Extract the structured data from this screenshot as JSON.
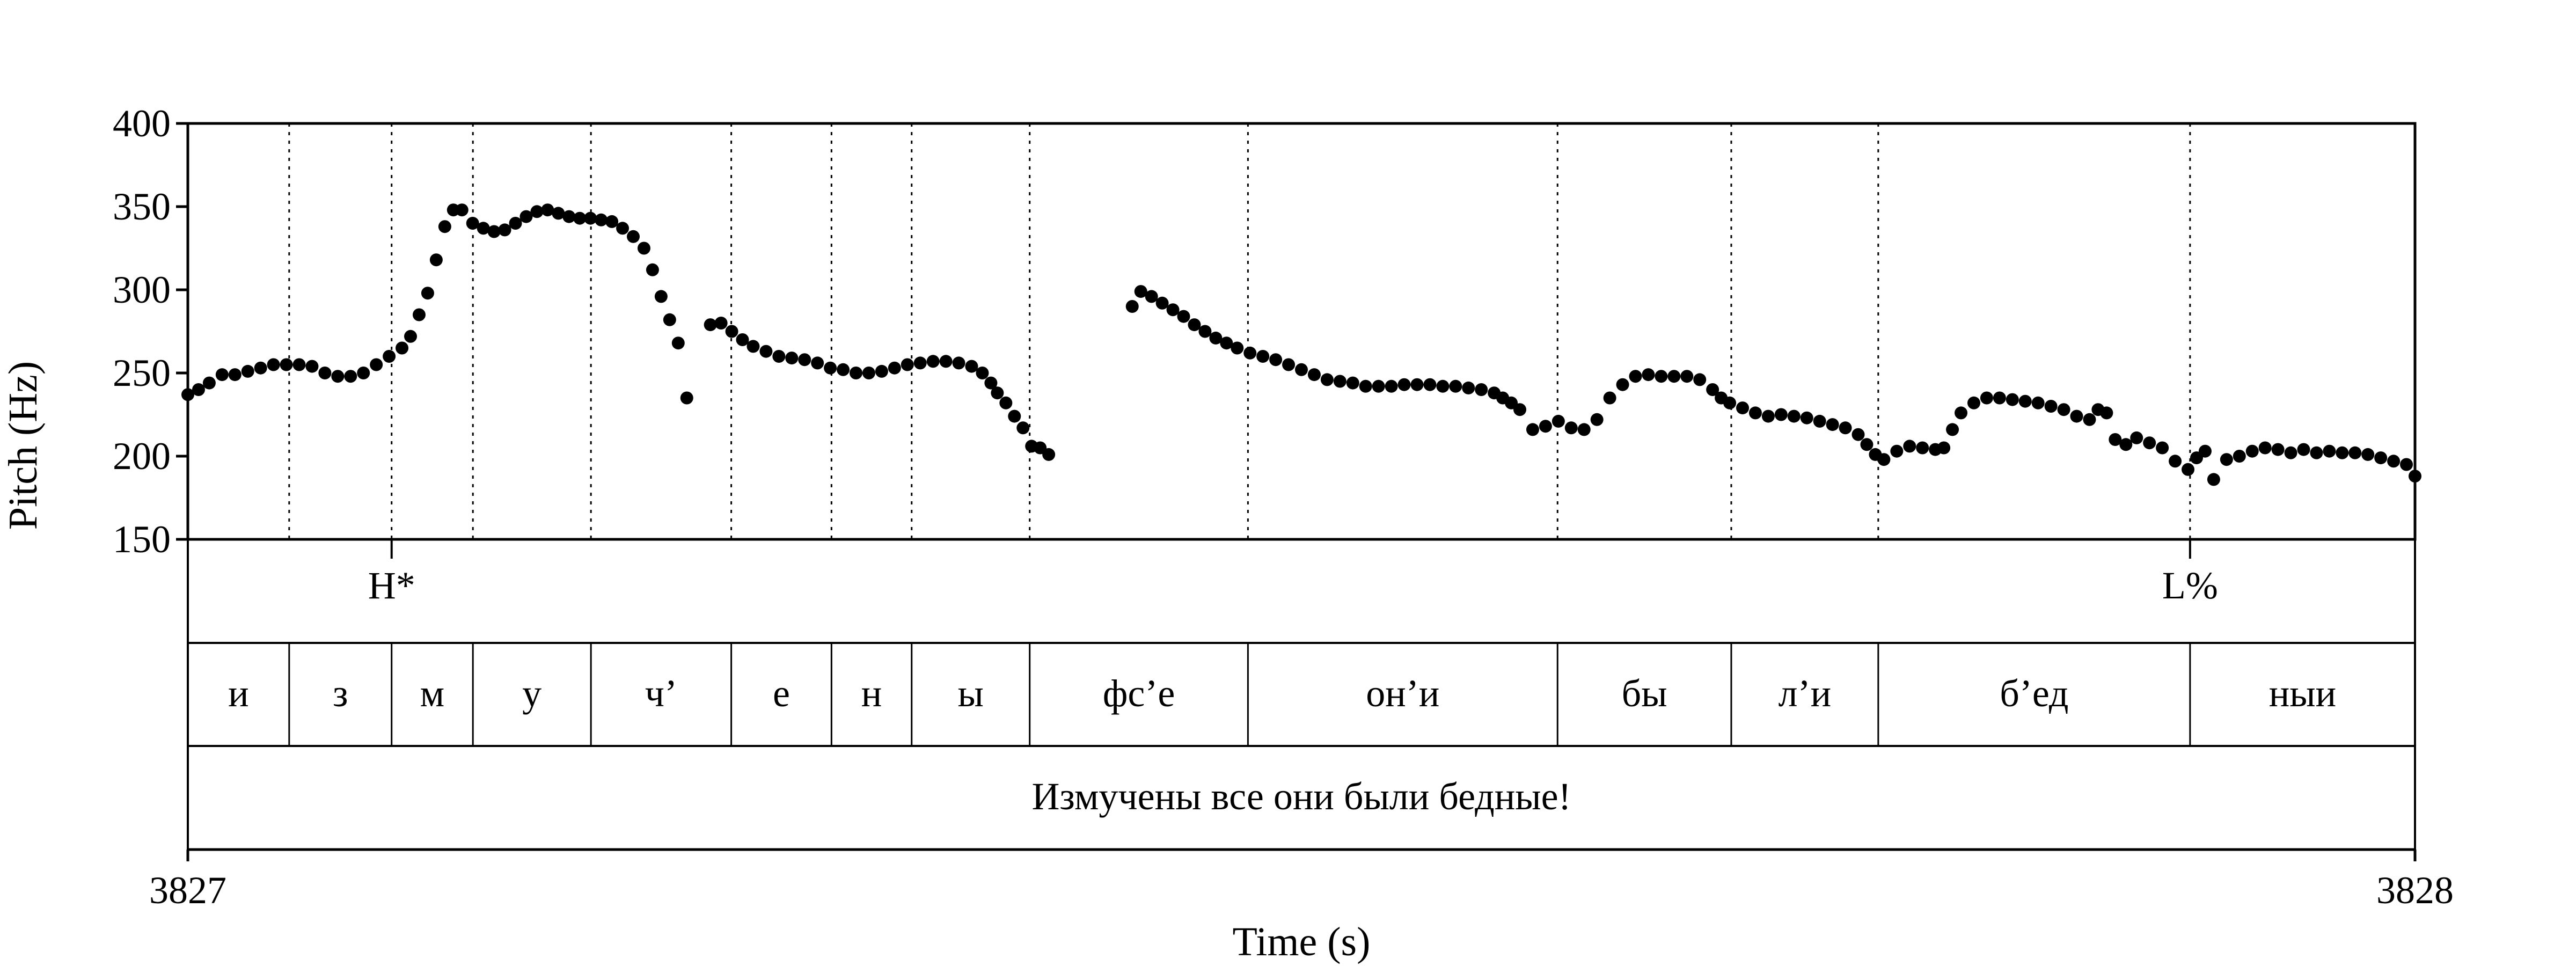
{
  "chart_data": {
    "type": "scatter",
    "xlabel": "Time (s)",
    "ylabel": "Pitch (Hz)",
    "xlim": [
      3827,
      3828
    ],
    "ylim": [
      150,
      400
    ],
    "x_ticks": [
      "3827",
      "3828"
    ],
    "y_ticks": [
      "150",
      "200",
      "250",
      "300",
      "350",
      "400"
    ],
    "y_tick_values": [
      150,
      200,
      250,
      300,
      350,
      400
    ],
    "grid": false,
    "marker_color": "#000000",
    "boundaries": [
      0.0455,
      0.0915,
      0.128,
      0.181,
      0.244,
      0.289,
      0.325,
      0.378,
      0.476,
      0.615,
      0.693,
      0.759,
      0.899
    ],
    "tones": [
      {
        "label": "H*",
        "t": 0.0915
      },
      {
        "label": "L%",
        "t": 0.899
      }
    ],
    "segments": [
      {
        "label": "и",
        "start": 0.0,
        "end": 0.0455
      },
      {
        "label": "з",
        "start": 0.0455,
        "end": 0.0915
      },
      {
        "label": "м",
        "start": 0.0915,
        "end": 0.128
      },
      {
        "label": "у",
        "start": 0.128,
        "end": 0.181
      },
      {
        "label": "ч’",
        "start": 0.181,
        "end": 0.244
      },
      {
        "label": "е",
        "start": 0.244,
        "end": 0.289
      },
      {
        "label": "н",
        "start": 0.289,
        "end": 0.325
      },
      {
        "label": "ы",
        "start": 0.325,
        "end": 0.378
      },
      {
        "label": "фс’е",
        "start": 0.378,
        "end": 0.476
      },
      {
        "label": "он’и",
        "start": 0.476,
        "end": 0.615
      },
      {
        "label": "бы",
        "start": 0.615,
        "end": 0.693
      },
      {
        "label": "л’и",
        "start": 0.693,
        "end": 0.759
      },
      {
        "label": "б’ед",
        "start": 0.759,
        "end": 0.899
      },
      {
        "label": "ныи",
        "start": 0.899,
        "end": 1.0
      }
    ],
    "sentence": "Измучены все они были бедные!",
    "series": [
      {
        "points": [
          [
            0.0,
            237
          ],
          [
            0.005,
            240
          ],
          [
            0.01,
            244
          ],
          [
            0.016,
            249
          ],
          [
            0.022,
            249
          ],
          [
            0.028,
            251
          ],
          [
            0.034,
            253
          ],
          [
            0.04,
            255
          ],
          [
            0.046,
            255
          ],
          [
            0.052,
            255
          ],
          [
            0.058,
            254
          ],
          [
            0.064,
            250
          ],
          [
            0.07,
            248
          ],
          [
            0.076,
            248
          ],
          [
            0.082,
            250
          ],
          [
            0.088,
            255
          ],
          [
            0.094,
            260
          ],
          [
            0.1,
            265
          ],
          [
            0.104,
            272
          ],
          [
            0.108,
            285
          ],
          [
            0.112,
            298
          ],
          [
            0.116,
            318
          ],
          [
            0.12,
            338
          ],
          [
            0.124,
            348
          ],
          [
            0.128,
            348
          ],
          [
            0.133,
            340
          ],
          [
            0.138,
            337
          ],
          [
            0.143,
            335
          ],
          [
            0.148,
            336
          ],
          [
            0.153,
            340
          ],
          [
            0.158,
            344
          ],
          [
            0.163,
            347
          ],
          [
            0.168,
            348
          ],
          [
            0.173,
            346
          ],
          [
            0.178,
            344
          ],
          [
            0.183,
            343
          ],
          [
            0.188,
            343
          ],
          [
            0.193,
            342
          ],
          [
            0.198,
            341
          ],
          [
            0.203,
            337
          ],
          [
            0.208,
            332
          ],
          [
            0.213,
            325
          ],
          [
            0.217,
            312
          ],
          [
            0.221,
            296
          ],
          [
            0.225,
            282
          ],
          [
            0.229,
            268
          ],
          [
            0.233,
            235
          ],
          [
            0.244,
            279
          ],
          [
            0.249,
            280
          ],
          [
            0.254,
            275
          ],
          [
            0.259,
            270
          ],
          [
            0.264,
            266
          ],
          [
            0.27,
            263
          ],
          [
            0.276,
            260
          ],
          [
            0.282,
            259
          ],
          [
            0.288,
            258
          ],
          [
            0.294,
            256
          ],
          [
            0.3,
            253
          ],
          [
            0.306,
            252
          ],
          [
            0.312,
            250
          ],
          [
            0.318,
            250
          ],
          [
            0.324,
            251
          ],
          [
            0.33,
            253
          ],
          [
            0.336,
            255
          ],
          [
            0.342,
            256
          ],
          [
            0.348,
            257
          ],
          [
            0.354,
            257
          ],
          [
            0.36,
            256
          ],
          [
            0.366,
            254
          ],
          [
            0.371,
            250
          ],
          [
            0.375,
            244
          ],
          [
            0.378,
            238
          ],
          [
            0.382,
            232
          ],
          [
            0.386,
            224
          ],
          [
            0.39,
            217
          ],
          [
            0.394,
            206
          ],
          [
            0.398,
            205
          ],
          [
            0.402,
            201
          ],
          [
            0.441,
            290
          ],
          [
            0.445,
            299
          ],
          [
            0.45,
            296
          ],
          [
            0.455,
            292
          ],
          [
            0.46,
            288
          ],
          [
            0.465,
            284
          ],
          [
            0.47,
            279
          ],
          [
            0.475,
            275
          ],
          [
            0.48,
            271
          ],
          [
            0.485,
            268
          ],
          [
            0.49,
            265
          ],
          [
            0.496,
            262
          ],
          [
            0.502,
            260
          ],
          [
            0.508,
            258
          ],
          [
            0.514,
            255
          ],
          [
            0.52,
            252
          ],
          [
            0.526,
            249
          ],
          [
            0.532,
            246
          ],
          [
            0.538,
            245
          ],
          [
            0.544,
            244
          ],
          [
            0.55,
            242
          ],
          [
            0.556,
            242
          ],
          [
            0.562,
            242
          ],
          [
            0.568,
            243
          ],
          [
            0.574,
            243
          ],
          [
            0.58,
            243
          ],
          [
            0.586,
            242
          ],
          [
            0.592,
            242
          ],
          [
            0.598,
            241
          ],
          [
            0.604,
            240
          ],
          [
            0.61,
            238
          ],
          [
            0.614,
            235
          ],
          [
            0.618,
            232
          ],
          [
            0.622,
            228
          ],
          [
            0.628,
            216
          ],
          [
            0.634,
            218
          ],
          [
            0.64,
            221
          ],
          [
            0.646,
            217
          ],
          [
            0.652,
            216
          ],
          [
            0.658,
            222
          ],
          [
            0.664,
            235
          ],
          [
            0.67,
            243
          ],
          [
            0.676,
            248
          ],
          [
            0.682,
            249
          ],
          [
            0.688,
            248
          ],
          [
            0.694,
            248
          ],
          [
            0.7,
            248
          ],
          [
            0.706,
            246
          ],
          [
            0.712,
            240
          ],
          [
            0.716,
            235
          ],
          [
            0.72,
            232
          ],
          [
            0.726,
            229
          ],
          [
            0.732,
            226
          ],
          [
            0.738,
            224
          ],
          [
            0.744,
            225
          ],
          [
            0.75,
            224
          ],
          [
            0.756,
            223
          ],
          [
            0.762,
            221
          ],
          [
            0.768,
            219
          ],
          [
            0.774,
            217
          ],
          [
            0.78,
            213
          ],
          [
            0.784,
            207
          ],
          [
            0.788,
            201
          ],
          [
            0.792,
            198
          ],
          [
            0.798,
            203
          ],
          [
            0.804,
            206
          ],
          [
            0.81,
            205
          ],
          [
            0.816,
            204
          ],
          [
            0.82,
            205
          ],
          [
            0.824,
            216
          ],
          [
            0.828,
            226
          ],
          [
            0.834,
            232
          ],
          [
            0.84,
            235
          ],
          [
            0.846,
            235
          ],
          [
            0.852,
            234
          ],
          [
            0.858,
            233
          ],
          [
            0.864,
            232
          ],
          [
            0.87,
            230
          ],
          [
            0.876,
            228
          ],
          [
            0.882,
            224
          ],
          [
            0.888,
            222
          ],
          [
            0.892,
            228
          ],
          [
            0.896,
            226
          ],
          [
            0.9,
            210
          ],
          [
            0.905,
            207
          ],
          [
            0.91,
            211
          ],
          [
            0.916,
            208
          ],
          [
            0.922,
            205
          ],
          [
            0.928,
            197
          ],
          [
            0.934,
            192
          ],
          [
            0.938,
            199
          ],
          [
            0.942,
            203
          ],
          [
            0.946,
            186
          ],
          [
            0.952,
            198
          ],
          [
            0.958,
            200
          ],
          [
            0.964,
            203
          ],
          [
            0.97,
            205
          ],
          [
            0.976,
            204
          ],
          [
            0.982,
            202
          ],
          [
            0.988,
            204
          ],
          [
            0.994,
            202
          ],
          [
            1.0,
            203
          ],
          [
            1.006,
            202
          ],
          [
            1.012,
            202
          ],
          [
            1.018,
            201
          ],
          [
            1.024,
            199
          ],
          [
            1.03,
            197
          ],
          [
            1.036,
            195
          ],
          [
            1.04,
            188
          ]
        ]
      }
    ]
  }
}
